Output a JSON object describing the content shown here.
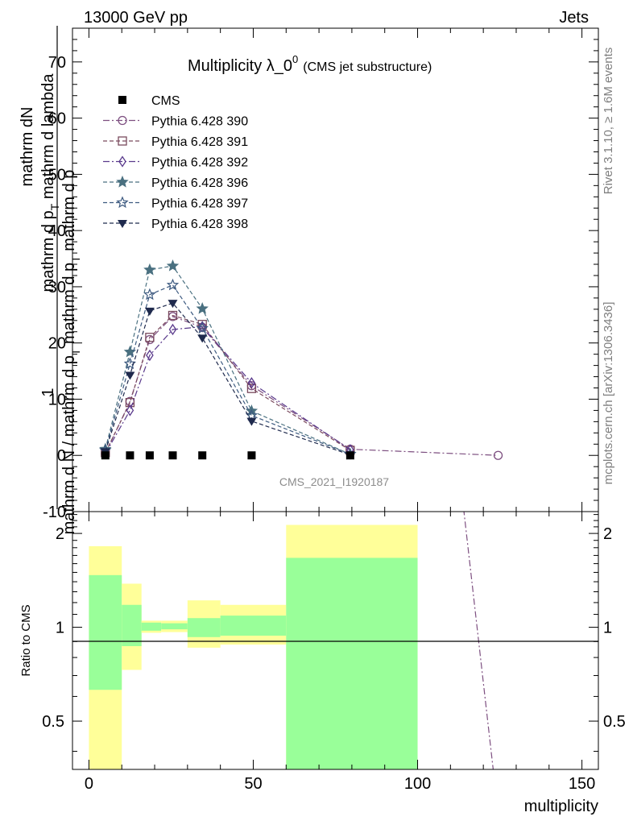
{
  "header": {
    "left": "13000 GeV pp",
    "right": "Jets"
  },
  "side_labels": {
    "rivet": "Rivet 3.1.10, ≥ 1.6M events",
    "mcplots": "mcplots.cern.ch [arXiv:1306.3436]"
  },
  "analysis_id": "CMS_2021_I1920187",
  "chart_data": [
    {
      "type": "line",
      "title_main": "Multiplicity λ_0",
      "title_sup": "0",
      "title_suffix": "(CMS jet substructure)",
      "ylabel_numerator": "mathrm dN",
      "ylabel_upper_part": "mathrm d p",
      "ylabel_upper_sub": "T",
      "ylabel_upper_tail": " mathrm d lambda",
      "ylabel_lower_part": "mathrm d N / mathrm d p",
      "ylabel_lower_sub": "T",
      "ylabel_lower_tail": " mathrm d p",
      "ylabel_lower_sub2": "T",
      "ylabel_lower_end": " mathrm d p",
      "ylabel_one": "1",
      "ylim": [
        -10,
        76
      ],
      "yticks": [
        -10,
        0,
        10,
        20,
        30,
        40,
        50,
        60,
        70
      ],
      "xlim": [
        -5,
        155
      ],
      "legend_position": "top-left",
      "series": [
        {
          "name": "CMS",
          "marker": "filled-square",
          "color": "#000000",
          "x": [
            5,
            12.5,
            18.5,
            25.5,
            34.5,
            49.5,
            79.5
          ],
          "y": [
            0.0,
            0.0,
            0.0,
            0.0,
            0.0,
            0.0,
            0.0
          ]
        },
        {
          "name": "Pythia 6.428 390",
          "marker": "open-circle",
          "color": "#7d4f80",
          "dash": "dashdot",
          "x": [
            5,
            12.5,
            18.5,
            25.5,
            34.5,
            49.5,
            79.5,
            124.5
          ],
          "y": [
            0.3,
            9.6,
            20.6,
            24.7,
            22.8,
            12.4,
            1.1,
            0.0
          ]
        },
        {
          "name": "Pythia 6.428 391",
          "marker": "open-square",
          "color": "#7a4a5e",
          "dash": "dashed",
          "x": [
            5,
            12.5,
            18.5,
            25.5,
            34.5,
            49.5,
            79.5
          ],
          "y": [
            0.5,
            9.4,
            21.0,
            24.9,
            23.3,
            11.9,
            0.9
          ]
        },
        {
          "name": "Pythia 6.428 392",
          "marker": "open-diamond",
          "color": "#5a3a8c",
          "dash": "dashdot",
          "x": [
            5,
            12.5,
            18.5,
            25.5,
            34.5,
            49.5,
            79.5
          ],
          "y": [
            0.3,
            8.0,
            17.8,
            22.4,
            22.9,
            12.9,
            1.0
          ]
        },
        {
          "name": "Pythia 6.428 396",
          "marker": "filled-star",
          "color": "#4a7080",
          "dash": "dashed",
          "x": [
            5,
            12.5,
            18.5,
            25.5,
            34.5,
            49.5,
            79.5
          ],
          "y": [
            1.1,
            18.4,
            33.0,
            33.7,
            26.1,
            7.9,
            0.2
          ]
        },
        {
          "name": "Pythia 6.428 397",
          "marker": "open-star",
          "color": "#3d5a80",
          "dash": "dashed",
          "x": [
            5,
            12.5,
            18.5,
            25.5,
            34.5,
            49.5,
            79.5
          ],
          "y": [
            0.9,
            16.3,
            28.6,
            30.3,
            22.6,
            7.1,
            0.2
          ]
        },
        {
          "name": "Pythia 6.428 398",
          "marker": "filled-triangle-down",
          "color": "#1f2a4d",
          "dash": "dashed",
          "x": [
            5,
            12.5,
            18.5,
            25.5,
            34.5,
            49.5,
            79.5
          ],
          "y": [
            0.7,
            14.3,
            25.7,
            27.1,
            20.9,
            6.1,
            0.1
          ]
        }
      ]
    },
    {
      "type": "ratio",
      "ylabel": "Ratio to CMS",
      "xlabel": "multiplicity",
      "xlim": [
        -5,
        155
      ],
      "xticks": [
        0,
        50,
        100,
        150
      ],
      "ylim_log": [
        0.35,
        2.35
      ],
      "yticks": [
        0.5,
        1,
        2
      ],
      "bands": [
        {
          "x0": 0,
          "x1": 10,
          "yellow": [
            0.3,
            1.82
          ],
          "green": [
            0.63,
            1.47
          ]
        },
        {
          "x0": 10,
          "x1": 16,
          "yellow": [
            0.73,
            1.38
          ],
          "green": [
            0.87,
            1.18
          ]
        },
        {
          "x0": 16,
          "x1": 22,
          "yellow": [
            0.96,
            1.05
          ],
          "green": [
            0.975,
            1.035
          ]
        },
        {
          "x0": 22,
          "x1": 30,
          "yellow": [
            0.965,
            1.05
          ],
          "green": [
            0.985,
            1.03
          ]
        },
        {
          "x0": 30,
          "x1": 40,
          "yellow": [
            0.86,
            1.22
          ],
          "green": [
            0.93,
            1.07
          ]
        },
        {
          "x0": 40,
          "x1": 60,
          "yellow": [
            0.88,
            1.18
          ],
          "green": [
            0.94,
            1.09
          ]
        },
        {
          "x0": 60,
          "x1": 100,
          "yellow": [
            0.3,
            2.13
          ],
          "green": [
            0.3,
            1.67
          ]
        }
      ],
      "ratio_line": {
        "series": "Pythia 6.428 390",
        "x": [
          114,
          123
        ],
        "y": [
          2.4,
          0.35
        ]
      }
    }
  ],
  "legend_colors": {
    "yellow_band": "#ffff99",
    "green_band": "#99ff99"
  }
}
